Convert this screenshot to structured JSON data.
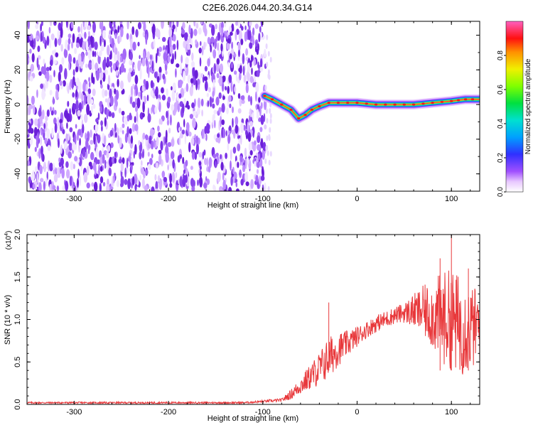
{
  "title": "C2E6.2026.044.20.34.G14",
  "colors": {
    "snr_line": "#e8383b",
    "spec_noise": "#7f3fe0",
    "ridge_center": "#e8383b",
    "axis": "#000000"
  },
  "chart_data": [
    {
      "type": "heatmap",
      "name": "spectrogram",
      "xlabel": "Height of straight line (km)",
      "ylabel": "Frequency (Hz)",
      "xlim": [
        -350,
        130
      ],
      "ylim": [
        -50,
        48
      ],
      "xticks": [
        -300,
        -200,
        -100,
        0,
        100
      ],
      "xtick_labels": [
        "-300",
        "-200",
        "-100",
        "0",
        "100"
      ],
      "yticks": [
        -40,
        -20,
        0,
        20,
        40
      ],
      "ytick_labels": [
        "-40",
        "-20",
        "0",
        "20",
        "40"
      ],
      "noise_region_x": [
        -350,
        -97
      ],
      "ridge": {
        "x": [
          -98,
          -90,
          -80,
          -70,
          -62,
          -55,
          -48,
          -40,
          -30,
          -20,
          -10,
          0,
          20,
          40,
          60,
          80,
          100,
          115,
          130
        ],
        "freq": [
          5,
          3,
          0,
          -3,
          -8,
          -6,
          -3,
          -1,
          1,
          1,
          1,
          1,
          0,
          0,
          0,
          1,
          2,
          3,
          3
        ]
      },
      "colorbar": {
        "label": "Normalized spectral amplitude",
        "range": [
          0,
          1
        ],
        "ticks": [
          0.0,
          0.2,
          0.4,
          0.6,
          0.8
        ],
        "tick_labels": [
          "0.0",
          "0.2",
          "0.4",
          "0.6",
          "0.8"
        ]
      }
    },
    {
      "type": "line",
      "name": "snr",
      "xlabel": "Height of straight line (km)",
      "ylabel": "SNR (10 * v/v)",
      "y_multiplier": "(x10",
      "y_multiplier_exp": "4",
      "y_multiplier_close": ")",
      "xlim": [
        -350,
        130
      ],
      "ylim": [
        0,
        2.0
      ],
      "xticks": [
        -300,
        -200,
        -100,
        0,
        100
      ],
      "xtick_labels": [
        "-300",
        "-200",
        "-100",
        "0",
        "100"
      ],
      "yticks": [
        0,
        0.5,
        1.0,
        1.5,
        2.0
      ],
      "ytick_labels": [
        "0.0",
        "0.5",
        "1.0",
        "1.5",
        "2.0"
      ],
      "envelope": {
        "x": [
          -350,
          -120,
          -80,
          -70,
          -60,
          -50,
          -40,
          -30,
          -20,
          -10,
          0,
          10,
          20,
          30,
          40,
          50,
          60,
          70,
          80,
          90,
          100,
          110,
          120,
          130
        ],
        "mean": [
          0.02,
          0.02,
          0.05,
          0.12,
          0.22,
          0.32,
          0.42,
          0.55,
          0.65,
          0.72,
          0.8,
          0.88,
          0.95,
          1.0,
          1.05,
          1.08,
          1.1,
          1.1,
          1.05,
          1.02,
          1.0,
          0.92,
          0.9,
          0.92
        ],
        "amp": [
          0.01,
          0.01,
          0.02,
          0.06,
          0.1,
          0.15,
          0.2,
          0.25,
          0.2,
          0.15,
          0.12,
          0.1,
          0.1,
          0.1,
          0.1,
          0.12,
          0.2,
          0.3,
          0.4,
          0.55,
          0.6,
          0.6,
          0.5,
          0.45
        ]
      },
      "peaks": [
        {
          "x": -30,
          "y": 1.2
        },
        {
          "x": 100,
          "y": 2.02
        },
        {
          "x": 88,
          "y": 1.72
        },
        {
          "x": 118,
          "y": 1.6
        }
      ]
    }
  ]
}
